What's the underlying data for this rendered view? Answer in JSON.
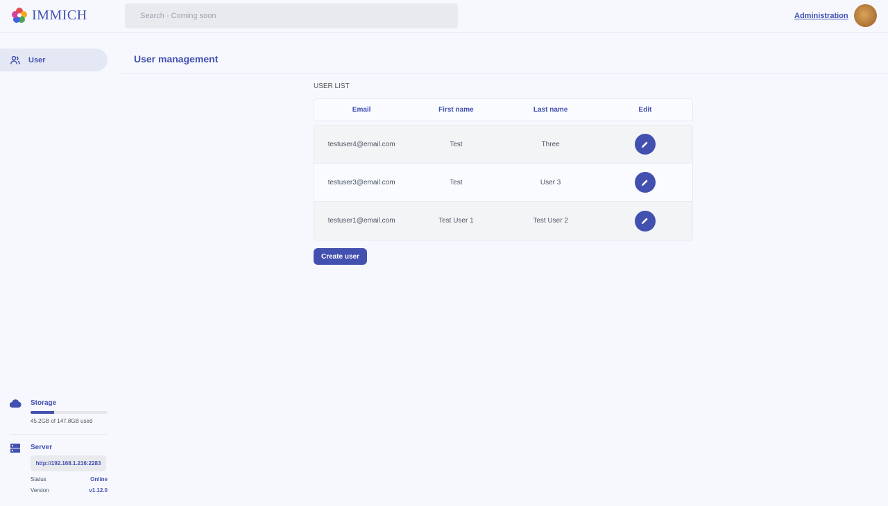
{
  "header": {
    "app_name": "IMMICH",
    "search_placeholder": "Search - Coming soon",
    "admin_link": "Administration"
  },
  "sidebar": {
    "items": [
      {
        "label": "User",
        "icon": "users-icon"
      }
    ],
    "storage": {
      "label": "Storage",
      "usage_text": "45.2GB of 147.8GB used",
      "used_fraction": 0.306
    },
    "server": {
      "label": "Server",
      "url": "http://192.168.1.216:2283",
      "status_label": "Status",
      "status": "Online",
      "version_label": "Version",
      "version": "v1.12.0"
    }
  },
  "main": {
    "title": "User management",
    "section": "USER LIST",
    "columns": [
      "Email",
      "First name",
      "Last name",
      "Edit"
    ],
    "rows": [
      {
        "email": "testuser4@email.com",
        "first": "Test",
        "last": "Three"
      },
      {
        "email": "testuser3@email.com",
        "first": "Test",
        "last": "User 3"
      },
      {
        "email": "testuser1@email.com",
        "first": "Test User 1",
        "last": "Test User 2"
      }
    ],
    "create_button": "Create user"
  },
  "colors": {
    "accent": "#4250af",
    "background": "#f6f8fe"
  }
}
